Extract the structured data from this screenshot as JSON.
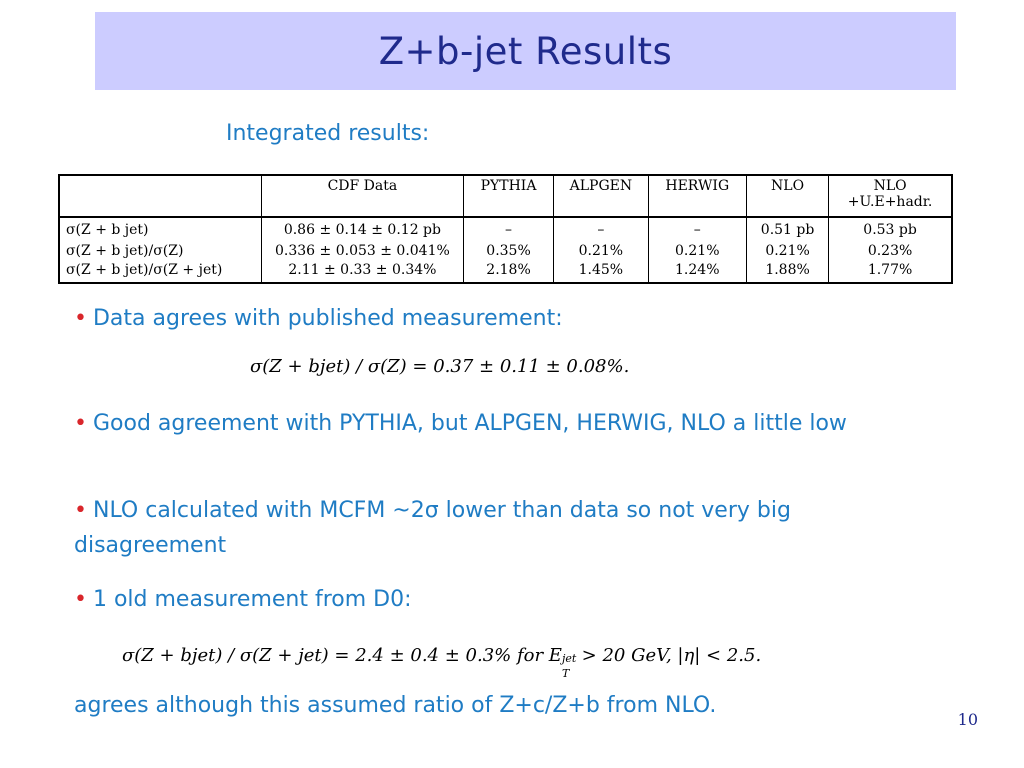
{
  "slide": {
    "title": "Z+b-jet Results",
    "subtitle": "Integrated results:",
    "page_number": "10"
  },
  "table": {
    "headers": [
      "",
      "CDF Data",
      "PYTHIA",
      "ALPGEN",
      "HERWIG",
      "NLO",
      "NLO\n+U.E+hadr."
    ],
    "rows": [
      [
        "σ(Z + b jet)",
        "0.86 ± 0.14 ± 0.12 pb",
        "–",
        "–",
        "–",
        "0.51 pb",
        "0.53 pb"
      ],
      [
        "σ(Z + b jet)/σ(Z)",
        "0.336 ± 0.053 ± 0.041%",
        "0.35%",
        "0.21%",
        "0.21%",
        "0.21%",
        "0.23%"
      ],
      [
        "σ(Z + b jet)/σ(Z + jet)",
        "2.11 ± 0.33 ± 0.34%",
        "2.18%",
        "1.45%",
        "1.24%",
        "1.88%",
        "1.77%"
      ]
    ]
  },
  "bullets": [
    "Data agrees with published measurement:",
    "Good agreement with PYTHIA, but ALPGEN, HERWIG, NLO a little low",
    "NLO calculated with MCFM ~2σ lower than data so not very big disagreement",
    "1 old measurement from D0:"
  ],
  "formulas": {
    "published": "σ(Z + bjet) / σ(Z) = 0.37 ± 0.11 ± 0.08%.",
    "d0_main": "σ(Z + bjet) / σ(Z + jet) = 2.4 ± 0.4 ± 0.3%  for E",
    "d0_sup": "jet",
    "d0_sub": "T",
    "d0_tail": " > 20 GeV, |η| < 2.5."
  },
  "closing": "agrees although this assumed ratio of Z+c/Z+b from NLO."
}
